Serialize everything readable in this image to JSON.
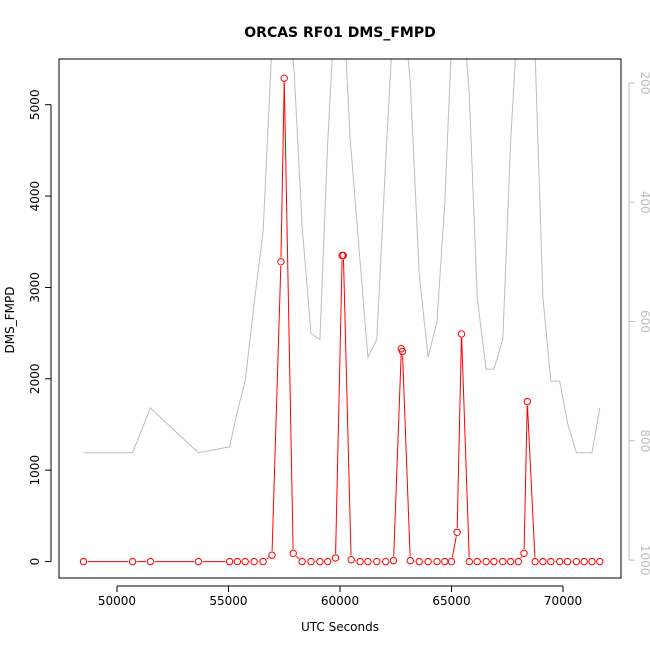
{
  "chart_data": {
    "type": "line",
    "title": "ORCAS RF01 DMS_FMPD",
    "xlabel": "UTC Seconds",
    "ylabel": "DMS_FMPD",
    "xlim": [
      47400,
      72600
    ],
    "ylim": [
      -180,
      5500
    ],
    "x_ticks": [
      50000,
      55000,
      60000,
      65000,
      70000
    ],
    "x_tick_labels": [
      "50000",
      "55000",
      "60000",
      "65000",
      "70000"
    ],
    "y_ticks": [
      0,
      1000,
      2000,
      3000,
      4000,
      5000
    ],
    "y_tick_labels": [
      "0",
      "1000",
      "2000",
      "3000",
      "4000",
      "5000"
    ],
    "y2_reversed": true,
    "y2_lim": [
      1030,
      160
    ],
    "y2_ticks": [
      200,
      400,
      600,
      800,
      1000
    ],
    "y2_tick_labels": [
      "200",
      "400",
      "600",
      "800",
      "1000"
    ],
    "grid": false,
    "series": [
      {
        "role": "primary",
        "color": "#ff0000",
        "marker": "open-circle",
        "line_mode": "gapped",
        "x": [
          48500,
          50700,
          51500,
          53650,
          55050,
          55400,
          55750,
          56150,
          56550,
          56950,
          57350,
          57500,
          57900,
          58300,
          58700,
          59100,
          59450,
          59800,
          60100,
          60150,
          60500,
          60900,
          61250,
          61650,
          62050,
          62400,
          62750,
          62800,
          63150,
          63550,
          63950,
          64350,
          64700,
          65000,
          65250,
          65450,
          65800,
          66150,
          66550,
          66900,
          67300,
          67650,
          68000,
          68250,
          68400,
          68750,
          69100,
          69450,
          69850,
          70200,
          70600,
          70950,
          71300,
          71650
        ],
        "y": [
          0,
          0,
          0,
          0,
          0,
          0,
          0,
          0,
          0,
          70,
          3280,
          5290,
          90,
          0,
          0,
          0,
          0,
          40,
          3350,
          3350,
          20,
          0,
          0,
          0,
          0,
          10,
          2330,
          2300,
          10,
          0,
          0,
          0,
          0,
          0,
          320,
          2490,
          0,
          0,
          0,
          0,
          0,
          0,
          0,
          90,
          1750,
          0,
          0,
          0,
          0,
          0,
          0,
          0,
          0,
          0
        ]
      },
      {
        "role": "secondary",
        "color": "#bebebe",
        "axis": "right",
        "x": [
          48500,
          50700,
          51500,
          53650,
          55050,
          55400,
          55750,
          56150,
          56550,
          56950,
          57350,
          57700,
          57950,
          58300,
          58700,
          59100,
          59450,
          59800,
          60100,
          60450,
          60900,
          61250,
          61650,
          62050,
          62400,
          62750,
          63150,
          63550,
          63950,
          64350,
          64700,
          65050,
          65400,
          65800,
          66150,
          66550,
          66900,
          67300,
          67650,
          68000,
          68400,
          68750,
          69100,
          69450,
          69850,
          70200,
          70600,
          70950,
          71300,
          71650
        ],
        "y": [
          820,
          820,
          745,
          820,
          810,
          750,
          700,
          570,
          450,
          135,
          50,
          80,
          185,
          440,
          620,
          630,
          300,
          55,
          30,
          290,
          500,
          660,
          630,
          330,
          90,
          30,
          200,
          520,
          660,
          600,
          400,
          90,
          20,
          220,
          560,
          680,
          680,
          630,
          300,
          70,
          45,
          150,
          560,
          700,
          700,
          770,
          820,
          820,
          820,
          745
        ]
      }
    ]
  }
}
